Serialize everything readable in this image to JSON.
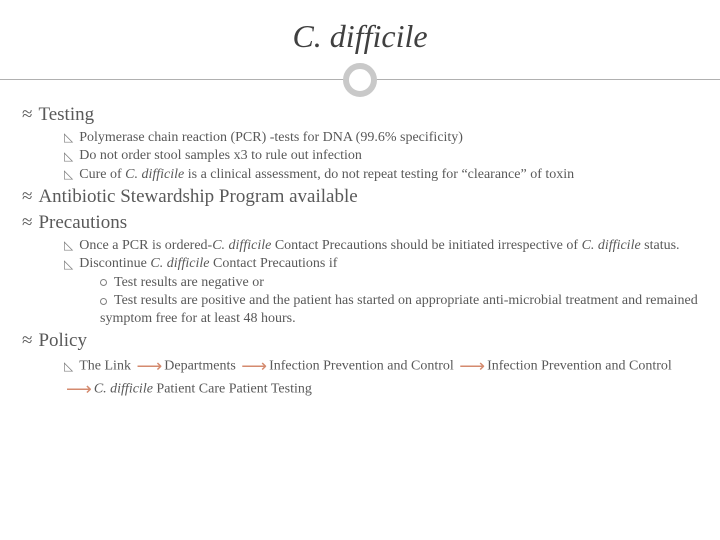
{
  "colors": {
    "text": "#595959",
    "title": "#404040",
    "rule": "#b0b0b0",
    "circle_border": "#c9c9c9",
    "arrow": "#d48a6e",
    "background": "#ffffff"
  },
  "fonts": {
    "title_family": "Georgia, serif",
    "body_family": "Georgia, 'Times New Roman', serif",
    "title_size_pt": 24,
    "lvl1_size_pt": 15,
    "lvl2_size_pt": 11,
    "lvl3_size_pt": 11
  },
  "title": "C. difficile",
  "sections": {
    "testing": {
      "heading": "Testing",
      "items": [
        "Polymerase chain reaction (PCR) -tests for DNA (99.6% specificity)",
        "Do not order stool samples x3 to rule out infection"
      ],
      "cure_prefix": "Cure of ",
      "cure_italic": "C. difficile",
      "cure_suffix": " is a clinical assessment, do not repeat testing for “clearance” of toxin"
    },
    "asp": {
      "heading": "Antibiotic Stewardship Program available"
    },
    "precautions": {
      "heading": "Precautions",
      "p1_a": "Once a PCR is ordered-",
      "p1_b": "C. difficile",
      "p1_c": " Contact Precautions should be initiated irrespective of ",
      "p1_d": "C. difficile",
      "p1_e": " status.",
      "p2_a": "Discontinue ",
      "p2_b": "C. difficile",
      "p2_c": " Contact Precautions if",
      "sub": [
        "Test results are negative or",
        "Test results are positive and the patient has started on appropriate anti-microbial treatment and remained symptom free for at least 48 hours."
      ]
    },
    "policy": {
      "heading": "Policy",
      "crumbs": {
        "a": "The Link",
        "b": "Departments",
        "c": "Infection Prevention and Control",
        "d": "Infection Prevention and Control",
        "e_italic": "C. difficile",
        "e_rest": " Patient Care Patient Testing"
      }
    }
  }
}
